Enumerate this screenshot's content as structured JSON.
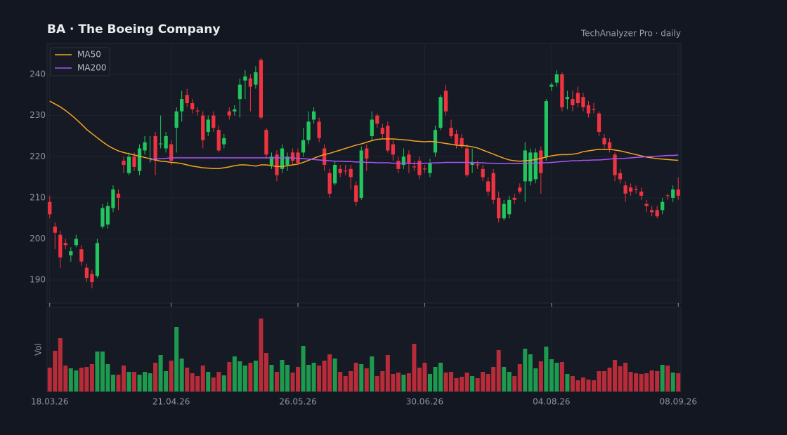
{
  "chart_data": {
    "type": "candlestick",
    "title": "BA  ·  The Boeing Company",
    "subtitle": "TechAnalyzer Pro · daily",
    "categories": [
      "18.03.26",
      null,
      null,
      null,
      null,
      null,
      null,
      null,
      null,
      null,
      null,
      null,
      null,
      null,
      null,
      null,
      null,
      null,
      null,
      null,
      null,
      null,
      null,
      "21.04.26",
      null,
      null,
      null,
      null,
      null,
      null,
      null,
      null,
      null,
      null,
      null,
      null,
      null,
      null,
      null,
      null,
      null,
      null,
      null,
      null,
      null,
      null,
      null,
      "26.05.26",
      null,
      null,
      null,
      null,
      null,
      null,
      null,
      null,
      null,
      null,
      null,
      null,
      null,
      null,
      null,
      null,
      null,
      null,
      null,
      null,
      null,
      null,
      null,
      "30.06.26",
      null,
      null,
      null,
      null,
      null,
      null,
      null,
      null,
      null,
      null,
      null,
      null,
      null,
      null,
      null,
      null,
      null,
      null,
      null,
      null,
      null,
      null,
      null,
      "04.08.26",
      null,
      null,
      null,
      null,
      null,
      null,
      null,
      null,
      null,
      null,
      null,
      null,
      null,
      null,
      null,
      null,
      null,
      null,
      null,
      null,
      null,
      null,
      null,
      "08.09.26"
    ],
    "open": [
      209,
      203,
      201,
      199,
      196,
      198.5,
      197.5,
      193,
      191.5,
      191,
      203,
      203.5,
      207.5,
      211,
      219,
      216,
      220,
      216.5,
      221.5,
      219.5,
      225,
      223,
      222,
      223,
      227,
      231,
      235,
      233,
      231.2,
      230,
      226,
      230,
      226.5,
      223,
      231,
      231,
      234,
      238.5,
      239,
      237.5,
      243.5,
      226.5,
      218,
      220.5,
      217,
      218,
      221,
      221,
      221,
      224,
      229,
      228.5,
      222,
      216,
      213.5,
      217,
      216.6,
      217,
      213,
      210,
      222,
      225,
      230,
      227,
      227.5,
      223,
      219,
      218,
      220.5,
      217.6,
      219,
      217.1,
      216,
      221,
      227,
      236,
      227,
      225.5,
      224.5,
      222,
      218,
      218.1,
      217,
      214,
      216,
      210,
      205,
      206,
      210,
      212.5,
      214,
      214,
      214.5,
      221.5,
      220,
      237,
      238,
      240,
      234,
      234,
      235.5,
      234.5,
      232.5,
      231.6,
      230.5,
      224.5,
      223.5,
      220.5,
      216,
      213,
      212.5,
      212.1,
      211.5,
      208.5,
      207,
      207,
      207,
      210.6,
      210,
      212
    ],
    "high": [
      210.5,
      204,
      202,
      200,
      198,
      201,
      198.5,
      194,
      192.5,
      200,
      208.5,
      209,
      213,
      212,
      220,
      221,
      221,
      223,
      225,
      225,
      226,
      230,
      226,
      224,
      232,
      236,
      236.5,
      234,
      232,
      231,
      230,
      231,
      227.5,
      225.5,
      232,
      232.5,
      239,
      241,
      240,
      242,
      244,
      227,
      221,
      221.5,
      223,
      221,
      222,
      222,
      227,
      231,
      232,
      229.5,
      223,
      217,
      219,
      218,
      218,
      218,
      214,
      222.5,
      223,
      231,
      230.5,
      228,
      228.5,
      224,
      220,
      222,
      221.5,
      219,
      220,
      218,
      219.5,
      227.5,
      235,
      237.5,
      229,
      226.5,
      225.5,
      223,
      222,
      219,
      218,
      215,
      217,
      211.5,
      209.5,
      210.5,
      211,
      213.5,
      223.5,
      222,
      222,
      222.5,
      234,
      238,
      241,
      240.5,
      236,
      236,
      237,
      235.5,
      233.5,
      233,
      231,
      225.5,
      224.5,
      221,
      217,
      214,
      213.5,
      213,
      212.5,
      209.5,
      208,
      208,
      210,
      211,
      213,
      215
    ],
    "low": [
      205,
      197.5,
      193,
      197.5,
      194.5,
      198,
      193.5,
      189.5,
      188,
      190.5,
      202.5,
      202.5,
      206.5,
      207,
      216,
      215.5,
      216.5,
      215.5,
      220.5,
      218.5,
      215.5,
      222,
      221,
      218,
      221,
      228.5,
      232,
      230.5,
      230,
      222,
      225,
      226,
      221,
      222,
      229,
      230,
      229.5,
      234,
      231,
      236.5,
      229,
      219.5,
      217,
      214,
      216,
      216.5,
      218,
      218,
      220,
      223,
      228,
      223.5,
      216.5,
      210,
      213,
      215,
      215.5,
      212,
      208,
      209.5,
      216.5,
      224,
      227,
      224.5,
      221,
      219,
      216,
      217,
      216,
      216.5,
      214.5,
      216,
      215,
      220,
      226.5,
      230,
      224.5,
      222,
      222,
      215,
      216,
      217,
      214,
      210.5,
      208.5,
      204,
      204.5,
      205,
      208.5,
      211,
      209,
      213,
      213.5,
      211,
      219,
      236,
      237,
      231,
      231.5,
      231,
      232,
      231,
      229.5,
      230.5,
      225,
      222,
      221,
      214,
      213.5,
      209,
      210.5,
      211,
      209.5,
      206.5,
      205.5,
      205,
      206,
      209.5,
      209,
      209.5
    ],
    "close": [
      206,
      201.5,
      195.5,
      198.5,
      197,
      200,
      194.5,
      190.5,
      189.5,
      199,
      207.5,
      208,
      212,
      210,
      218,
      220,
      217.5,
      222,
      223.5,
      219.6,
      219,
      223.2,
      225,
      219,
      231,
      234,
      233,
      231.5,
      231,
      224,
      229,
      227,
      221.5,
      224.5,
      230,
      231.5,
      237.5,
      239.5,
      237,
      240.5,
      229.5,
      220.5,
      220,
      215.5,
      222,
      220,
      219,
      218.5,
      224,
      228.5,
      231,
      224.5,
      218,
      211,
      218,
      216,
      216.4,
      215,
      209,
      221.5,
      219.5,
      229,
      228,
      225.5,
      221.5,
      220.5,
      217,
      220,
      218.5,
      217.4,
      215.5,
      216.9,
      218.5,
      226.5,
      234.5,
      231,
      225,
      223,
      222.5,
      215.5,
      218.5,
      217.9,
      215,
      211.5,
      209.5,
      205,
      208.5,
      209.5,
      209.5,
      211.5,
      221.5,
      221,
      221,
      216,
      233.5,
      237.5,
      240,
      232,
      234.5,
      232.5,
      233,
      232,
      230.5,
      231.4,
      226,
      223,
      222,
      215.5,
      214.5,
      211,
      211.5,
      211.9,
      210.5,
      208,
      206.5,
      205.5,
      209,
      210.4,
      212,
      210.5
    ],
    "up_color": "#22c55e",
    "down_color": "#ef3340",
    "ylim": [
      184.4,
      247.5
    ],
    "yticks": [
      190,
      200,
      210,
      220,
      230,
      240
    ],
    "grid": true,
    "legend": "upper left",
    "series": [
      {
        "name": "MA50",
        "color": "#f5a524",
        "values": [
          233.5,
          232.8,
          232.1,
          231.2,
          230.2,
          229.1,
          227.9,
          226.6,
          225.6,
          224.6,
          223.6,
          222.7,
          222.0,
          221.4,
          221.0,
          220.7,
          220.4,
          220.1,
          219.8,
          219.5,
          219.2,
          218.9,
          218.8,
          218.6,
          218.5,
          218.3,
          218.0,
          217.7,
          217.5,
          217.3,
          217.2,
          217.1,
          217.1,
          217.3,
          217.5,
          217.8,
          218.0,
          218.0,
          217.9,
          217.7,
          218.0,
          218.0,
          217.8,
          217.6,
          217.6,
          217.8,
          218.0,
          218.2,
          218.6,
          219.1,
          219.6,
          220.1,
          220.5,
          220.8,
          221.2,
          221.6,
          222.0,
          222.4,
          222.8,
          223.1,
          223.5,
          223.9,
          224.2,
          224.3,
          224.3,
          224.3,
          224.2,
          224.1,
          224.0,
          223.8,
          223.7,
          223.6,
          223.7,
          223.6,
          223.4,
          223.2,
          223.0,
          222.8,
          222.7,
          222.6,
          222.4,
          222.1,
          221.6,
          221.1,
          220.6,
          220.1,
          219.6,
          219.2,
          219.0,
          218.9,
          219.0,
          219.1,
          219.3,
          219.6,
          219.9,
          220.2,
          220.4,
          220.5,
          220.5,
          220.6,
          220.8,
          221.2,
          221.4,
          221.6,
          221.8,
          221.7,
          221.8,
          221.6,
          221.4,
          221.1,
          220.8,
          220.5,
          220.2,
          219.9,
          219.7,
          219.5,
          219.4,
          219.3,
          219.2,
          219.1
        ]
      },
      {
        "name": "MA200",
        "color": "#a855f7",
        "values": [
          null,
          null,
          null,
          null,
          null,
          null,
          null,
          null,
          null,
          null,
          null,
          null,
          null,
          null,
          null,
          null,
          null,
          null,
          null,
          219.2,
          219.4,
          219.5,
          219.6,
          219.7,
          219.7,
          219.7,
          219.7,
          219.7,
          219.7,
          219.7,
          219.7,
          219.7,
          219.7,
          219.7,
          219.7,
          219.7,
          219.7,
          219.7,
          219.7,
          219.7,
          219.7,
          219.7,
          219.7,
          219.7,
          219.7,
          219.7,
          219.7,
          219.6,
          219.5,
          219.4,
          219.3,
          219.2,
          219.1,
          219.0,
          218.9,
          218.9,
          218.8,
          218.8,
          218.7,
          218.7,
          218.6,
          218.6,
          218.5,
          218.5,
          218.5,
          218.4,
          218.4,
          218.4,
          218.4,
          218.3,
          218.3,
          218.4,
          218.4,
          218.5,
          218.5,
          218.6,
          218.6,
          218.6,
          218.6,
          218.6,
          218.6,
          218.5,
          218.5,
          218.4,
          218.4,
          218.3,
          218.3,
          218.3,
          218.3,
          218.3,
          218.3,
          218.4,
          218.4,
          218.5,
          218.5,
          218.6,
          218.7,
          218.8,
          218.9,
          219.0,
          219.0,
          219.1,
          219.1,
          219.2,
          219.2,
          219.3,
          219.4,
          219.5,
          219.5,
          219.6,
          219.7,
          219.8,
          219.9,
          220.0,
          220.0,
          220.1,
          220.2,
          220.3,
          220.3,
          220.4
        ]
      }
    ],
    "volume": {
      "label": "Vol",
      "ylim": [
        0,
        120
      ],
      "values": [
        34,
        58,
        76,
        37,
        33,
        30,
        34,
        35,
        39,
        57,
        57,
        39,
        24,
        24,
        37,
        28,
        28,
        24,
        28,
        26,
        41,
        52,
        29,
        44,
        92,
        47,
        34,
        26,
        22,
        37,
        28,
        20,
        28,
        23,
        42,
        50,
        43,
        37,
        41,
        44,
        104,
        55,
        38,
        28,
        45,
        38,
        27,
        35,
        65,
        38,
        41,
        37,
        44,
        53,
        47,
        28,
        22,
        29,
        41,
        39,
        33,
        50,
        22,
        29,
        52,
        25,
        27,
        24,
        26,
        68,
        34,
        41,
        25,
        35,
        41,
        27,
        28,
        19,
        21,
        27,
        22,
        19,
        28,
        25,
        35,
        59,
        35,
        28,
        22,
        39,
        61,
        53,
        33,
        43,
        64,
        46,
        41,
        42,
        25,
        22,
        16,
        20,
        17,
        16,
        29,
        29,
        34,
        45,
        36,
        41,
        28,
        26,
        25,
        26,
        30,
        29,
        38,
        37,
        27,
        26
      ]
    }
  }
}
